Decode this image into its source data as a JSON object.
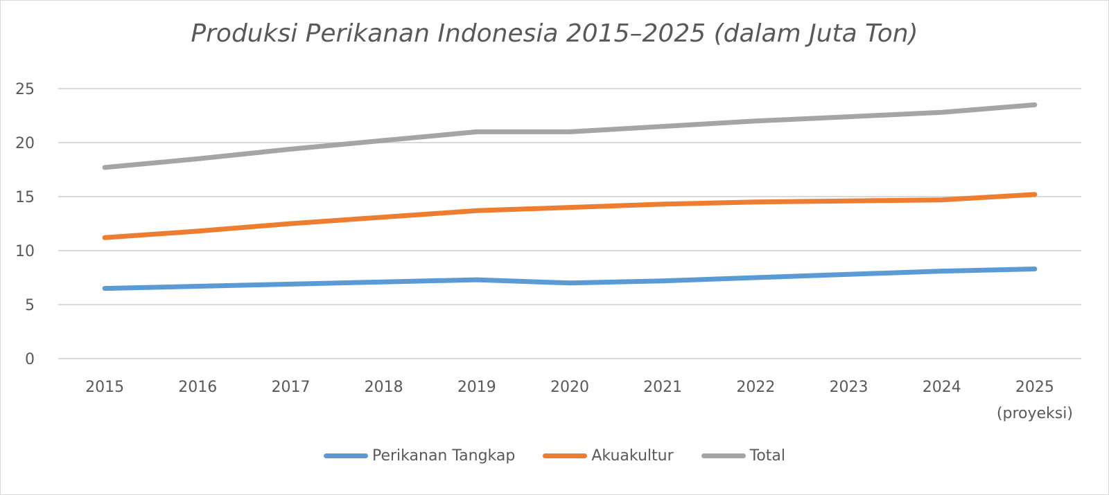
{
  "chart_data": {
    "type": "line",
    "title": "Produksi Perikanan Indonesia 2015–2025 (dalam Juta Ton)",
    "categories": [
      "2015",
      "2016",
      "2017",
      "2018",
      "2019",
      "2020",
      "2021",
      "2022",
      "2023",
      "2024",
      "2025"
    ],
    "category_sublabels": [
      "",
      "",
      "",
      "",
      "",
      "",
      "",
      "",
      "",
      "",
      "(proyeksi)"
    ],
    "ylim": [
      0,
      25
    ],
    "yticks": [
      0,
      5,
      10,
      15,
      20,
      25
    ],
    "grid": true,
    "legend_position": "bottom",
    "series": [
      {
        "name": "Perikanan Tangkap",
        "color": "#5b9bd5",
        "values": [
          6.5,
          6.7,
          6.9,
          7.1,
          7.3,
          7.0,
          7.2,
          7.5,
          7.8,
          8.1,
          8.3
        ]
      },
      {
        "name": "Akuakultur",
        "color": "#ed7d31",
        "values": [
          11.2,
          11.8,
          12.5,
          13.1,
          13.7,
          14.0,
          14.3,
          14.5,
          14.6,
          14.7,
          15.2
        ]
      },
      {
        "name": "Total",
        "color": "#a5a5a5",
        "values": [
          17.7,
          18.5,
          19.4,
          20.2,
          21.0,
          21.0,
          21.5,
          22.0,
          22.4,
          22.8,
          23.5
        ]
      }
    ]
  }
}
